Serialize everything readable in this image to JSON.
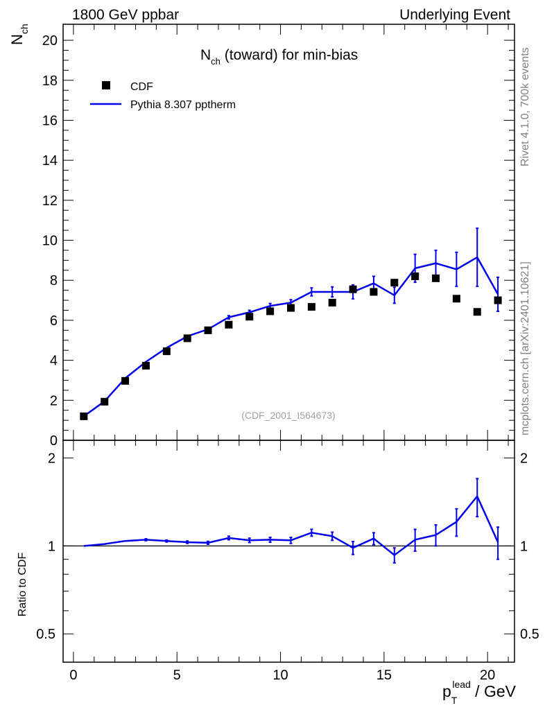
{
  "header": {
    "left": "1800 GeV ppbar",
    "right": "Underlying Event"
  },
  "side_labels": {
    "rivet": "Rivet 4.1.0,  700k events",
    "mcplots": "mcplots.cern.ch [arXiv:2401.10621]"
  },
  "chart_data": [
    {
      "type": "scatter",
      "title": "N_ch (toward) for min-bias",
      "title_main": "N",
      "title_sub": "ch",
      "title_rest": " (toward) for min-bias",
      "ylabel_main": "N",
      "ylabel_sub": "ch",
      "watermark": "(CDF_2001_I564673)",
      "xlim": [
        -0.5,
        21.3
      ],
      "ylim": [
        0,
        20.8
      ],
      "yticks": [
        0,
        2,
        4,
        6,
        8,
        10,
        12,
        14,
        16,
        18,
        20
      ],
      "ytick_labels": [
        "0",
        "2",
        "4",
        "6",
        "8",
        "10",
        "12",
        "14",
        "16",
        "18",
        "20"
      ],
      "legend_position": "top-left",
      "x": [
        0.5,
        1.5,
        2.5,
        3.5,
        4.5,
        5.5,
        6.5,
        7.5,
        8.5,
        9.5,
        10.5,
        11.5,
        12.5,
        13.5,
        14.5,
        15.5,
        16.5,
        17.5,
        18.5,
        19.5,
        20.5
      ],
      "series": [
        {
          "name": "CDF",
          "marker": "square",
          "color": "#000000",
          "values": [
            1.2,
            1.93,
            2.97,
            3.73,
            4.45,
            5.1,
            5.5,
            5.78,
            6.18,
            6.45,
            6.62,
            6.67,
            6.88,
            7.55,
            7.42,
            7.88,
            8.2,
            8.1,
            7.08,
            6.42,
            7.0
          ]
        },
        {
          "name": "Pythia 8.307 pptherm",
          "marker": "line",
          "color": "#0000ee",
          "values": [
            1.2,
            1.95,
            3.1,
            3.92,
            4.62,
            5.2,
            5.55,
            6.15,
            6.4,
            6.72,
            6.88,
            7.42,
            7.42,
            7.42,
            7.85,
            7.25,
            8.6,
            8.85,
            8.55,
            9.15,
            7.3
          ],
          "errors": [
            0.02,
            0.02,
            0.03,
            0.03,
            0.04,
            0.05,
            0.06,
            0.08,
            0.1,
            0.12,
            0.15,
            0.2,
            0.25,
            0.35,
            0.35,
            0.4,
            0.7,
            0.65,
            0.85,
            1.45,
            0.85
          ]
        }
      ]
    },
    {
      "type": "line",
      "ylabel": "Ratio to CDF",
      "xlabel_main": "p",
      "xlabel_sub": "T",
      "xlabel_sup": "lead",
      "xlabel_rest": " / GeV",
      "xlim": [
        -0.5,
        21.3
      ],
      "ylim": [
        0.4,
        2.3
      ],
      "log_y": true,
      "xticks": [
        0,
        5,
        10,
        15,
        20
      ],
      "xtick_labels": [
        "0",
        "5",
        "10",
        "15",
        "20"
      ],
      "yticks": [
        0.5,
        1,
        2
      ],
      "ytick_labels": [
        "0.5",
        "1",
        "2"
      ],
      "reference": 1,
      "x": [
        0.5,
        1.5,
        2.5,
        3.5,
        4.5,
        5.5,
        6.5,
        7.5,
        8.5,
        9.5,
        10.5,
        11.5,
        12.5,
        13.5,
        14.5,
        15.5,
        16.5,
        17.5,
        18.5,
        19.5,
        20.5
      ],
      "series": [
        {
          "name": "Pythia 8.307 pptherm / CDF",
          "color": "#0000ee",
          "values": [
            1.0,
            1.015,
            1.04,
            1.05,
            1.04,
            1.03,
            1.025,
            1.065,
            1.045,
            1.05,
            1.045,
            1.11,
            1.08,
            0.985,
            1.06,
            0.93,
            1.05,
            1.09,
            1.21,
            1.48,
            1.03
          ],
          "errors": [
            0.005,
            0.005,
            0.006,
            0.008,
            0.008,
            0.01,
            0.012,
            0.015,
            0.018,
            0.02,
            0.025,
            0.03,
            0.035,
            0.05,
            0.05,
            0.055,
            0.09,
            0.09,
            0.13,
            0.22,
            0.13
          ]
        }
      ]
    }
  ]
}
